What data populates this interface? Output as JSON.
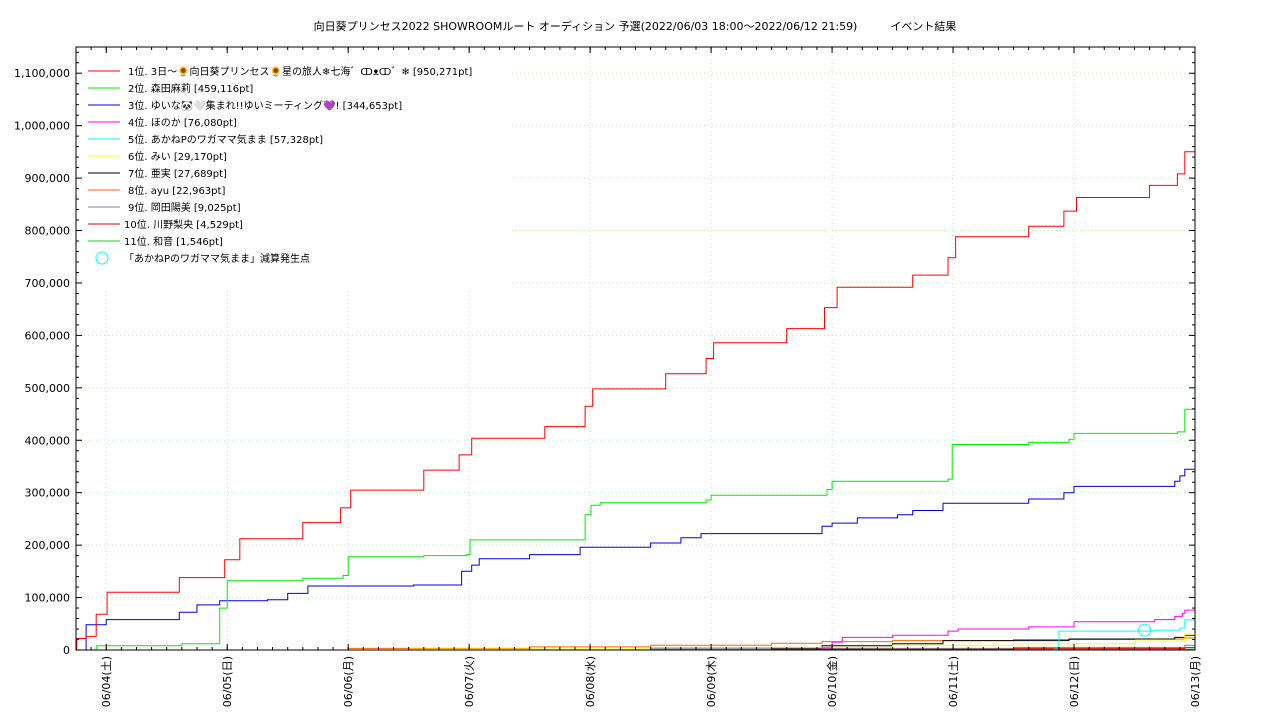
{
  "chart_data": {
    "type": "line",
    "title": "向日葵プリンセス2022 SHOWROOMルート オーディション 予選(2022/06/03 18:00～2022/06/12 21:59)　　　イベント結果",
    "xlabel": "",
    "ylabel": "",
    "ylim": [
      0,
      1150000
    ],
    "xlim": [
      "2022-06-03 18:00",
      "2022-06-13 00:00"
    ],
    "y_ticks": [
      0,
      100000,
      200000,
      300000,
      400000,
      500000,
      600000,
      700000,
      800000,
      900000,
      1000000,
      1100000
    ],
    "y_tick_labels": [
      "0",
      "100,000",
      "200,000",
      "300,000",
      "400,000",
      "500,000",
      "600,000",
      "700,000",
      "800,000",
      "900,000",
      "1,000,000",
      "1,100,000"
    ],
    "x_ticks": [
      "2022-06-04",
      "2022-06-05",
      "2022-06-06",
      "2022-06-07",
      "2022-06-08",
      "2022-06-09",
      "2022-06-10",
      "2022-06-11",
      "2022-06-12",
      "2022-06-13"
    ],
    "x_tick_labels": [
      "06/04(土)",
      "06/05(日)",
      "06/06(月)",
      "06/07(火)",
      "06/08(水)",
      "06/09(木)",
      "06/10(金)",
      "06/11(土)",
      "06/12(日)",
      "06/13(月)"
    ],
    "grid": true,
    "legend_position": "top-left",
    "series": [
      {
        "name": "1位. 3日〜🌻向日葵プリンセス🌻星の旅人❄七海゛ↀᴥↀ゛❄ [950,271pt]",
        "color": "#ff0000",
        "points": [
          [
            "2022-06-03 18:00",
            0
          ],
          [
            "2022-06-03 18:10",
            22000
          ],
          [
            "2022-06-03 20:00",
            26000
          ],
          [
            "2022-06-03 22:00",
            68000
          ],
          [
            "2022-06-04 00:10",
            110000
          ],
          [
            "2022-06-04 14:30",
            138000
          ],
          [
            "2022-06-04 23:30",
            172000
          ],
          [
            "2022-06-05 02:30",
            212000
          ],
          [
            "2022-06-05 15:00",
            243000
          ],
          [
            "2022-06-05 22:30",
            271000
          ],
          [
            "2022-06-06 00:30",
            305000
          ],
          [
            "2022-06-06 15:00",
            343000
          ],
          [
            "2022-06-06 22:00",
            372000
          ],
          [
            "2022-06-07 00:30",
            404000
          ],
          [
            "2022-06-07 15:00",
            426000
          ],
          [
            "2022-06-07 23:00",
            465000
          ],
          [
            "2022-06-08 00:30",
            498000
          ],
          [
            "2022-06-08 15:00",
            527000
          ],
          [
            "2022-06-08 23:00",
            556000
          ],
          [
            "2022-06-09 00:30",
            586000
          ],
          [
            "2022-06-09 15:00",
            613000
          ],
          [
            "2022-06-09 22:30",
            653000
          ],
          [
            "2022-06-10 01:00",
            692000
          ],
          [
            "2022-06-10 16:00",
            715000
          ],
          [
            "2022-06-10 23:00",
            748000
          ],
          [
            "2022-06-11 00:30",
            788000
          ],
          [
            "2022-06-11 15:00",
            808000
          ],
          [
            "2022-06-11 22:00",
            837000
          ],
          [
            "2022-06-12 00:30",
            863000
          ],
          [
            "2022-06-12 15:00",
            886000
          ],
          [
            "2022-06-12 20:30",
            908000
          ],
          [
            "2022-06-12 21:59",
            950271
          ],
          [
            "2022-06-13 00:00",
            950271
          ]
        ]
      },
      {
        "name": "2位. 森田麻莉 [459,116pt]",
        "color": "#00ee00",
        "points": [
          [
            "2022-06-03 18:00",
            0
          ],
          [
            "2022-06-03 22:00",
            8000
          ],
          [
            "2022-06-04 15:00",
            12000
          ],
          [
            "2022-06-04 22:30",
            80000
          ],
          [
            "2022-06-05 00:00",
            132000
          ],
          [
            "2022-06-05 15:00",
            137000
          ],
          [
            "2022-06-05 23:00",
            142000
          ],
          [
            "2022-06-06 00:00",
            178000
          ],
          [
            "2022-06-06 15:00",
            180000
          ],
          [
            "2022-06-06 23:30",
            182000
          ],
          [
            "2022-06-07 00:10",
            210000
          ],
          [
            "2022-06-07 23:00",
            258000
          ],
          [
            "2022-06-08 00:10",
            276000
          ],
          [
            "2022-06-08 02:00",
            281000
          ],
          [
            "2022-06-08 23:00",
            286000
          ],
          [
            "2022-06-09 00:00",
            295000
          ],
          [
            "2022-06-09 23:00",
            306000
          ],
          [
            "2022-06-10 00:00",
            322000
          ],
          [
            "2022-06-10 23:00",
            326000
          ],
          [
            "2022-06-10 23:50",
            392000
          ],
          [
            "2022-06-11 15:00",
            396000
          ],
          [
            "2022-06-11 23:00",
            402000
          ],
          [
            "2022-06-12 00:00",
            413000
          ],
          [
            "2022-06-12 20:30",
            416000
          ],
          [
            "2022-06-12 21:59",
            459116
          ],
          [
            "2022-06-13 00:00",
            459116
          ]
        ]
      },
      {
        "name": "3位. ゆいな🐼🤍集まれ!!ゆいミーティング💜! [344,653pt]",
        "color": "#0000dd",
        "points": [
          [
            "2022-06-03 18:00",
            0
          ],
          [
            "2022-06-03 20:00",
            48000
          ],
          [
            "2022-06-04 00:00",
            58000
          ],
          [
            "2022-06-04 14:30",
            72000
          ],
          [
            "2022-06-04 18:00",
            86000
          ],
          [
            "2022-06-04 22:30",
            94000
          ],
          [
            "2022-06-05 08:00",
            96000
          ],
          [
            "2022-06-05 12:00",
            108000
          ],
          [
            "2022-06-05 16:00",
            122000
          ],
          [
            "2022-06-06 13:00",
            124000
          ],
          [
            "2022-06-06 22:30",
            150000
          ],
          [
            "2022-06-07 00:30",
            162000
          ],
          [
            "2022-06-07 02:00",
            174000
          ],
          [
            "2022-06-07 12:00",
            182000
          ],
          [
            "2022-06-07 22:00",
            196000
          ],
          [
            "2022-06-08 12:00",
            204000
          ],
          [
            "2022-06-08 18:00",
            214000
          ],
          [
            "2022-06-08 22:00",
            222000
          ],
          [
            "2022-06-09 22:00",
            236000
          ],
          [
            "2022-06-10 00:00",
            242000
          ],
          [
            "2022-06-10 05:00",
            252000
          ],
          [
            "2022-06-10 13:00",
            258000
          ],
          [
            "2022-06-10 16:00",
            266000
          ],
          [
            "2022-06-10 22:00",
            280000
          ],
          [
            "2022-06-11 15:00",
            288000
          ],
          [
            "2022-06-11 22:00",
            300000
          ],
          [
            "2022-06-12 00:00",
            312000
          ],
          [
            "2022-06-12 20:00",
            322000
          ],
          [
            "2022-06-12 21:00",
            332000
          ],
          [
            "2022-06-12 21:59",
            344653
          ],
          [
            "2022-06-13 00:00",
            344653
          ]
        ]
      },
      {
        "name": "4位. ほのか [76,080pt]",
        "color": "#ff00ff",
        "points": [
          [
            "2022-06-03 18:00",
            0
          ],
          [
            "2022-06-09 22:00",
            4000
          ],
          [
            "2022-06-10 00:00",
            15000
          ],
          [
            "2022-06-10 02:00",
            24000
          ],
          [
            "2022-06-10 12:00",
            28000
          ],
          [
            "2022-06-10 23:00",
            36000
          ],
          [
            "2022-06-11 01:00",
            40000
          ],
          [
            "2022-06-11 15:00",
            44000
          ],
          [
            "2022-06-12 00:00",
            54000
          ],
          [
            "2022-06-12 16:00",
            58000
          ],
          [
            "2022-06-12 20:00",
            64000
          ],
          [
            "2022-06-12 21:30",
            70000
          ],
          [
            "2022-06-12 21:59",
            76080
          ],
          [
            "2022-06-13 00:00",
            76080
          ]
        ]
      },
      {
        "name": "5位. あかねPのワガママ気まま [57,328pt]",
        "color": "#00ffff",
        "points": [
          [
            "2022-06-03 18:00",
            0
          ],
          [
            "2022-06-11 20:00",
            2000
          ],
          [
            "2022-06-11 21:00",
            36000
          ],
          [
            "2022-06-12 16:00",
            38000
          ],
          [
            "2022-06-12 21:00",
            42000
          ],
          [
            "2022-06-12 21:59",
            57328
          ],
          [
            "2022-06-13 00:00",
            57328
          ]
        ]
      },
      {
        "name": "6位. みい [29,170pt]",
        "color": "#ffff00",
        "points": [
          [
            "2022-06-03 18:00",
            0
          ],
          [
            "2022-06-06 12:00",
            2000
          ],
          [
            "2022-06-08 12:00",
            5000
          ],
          [
            "2022-06-10 12:00",
            9000
          ],
          [
            "2022-06-11 12:00",
            12000
          ],
          [
            "2022-06-12 12:00",
            17000
          ],
          [
            "2022-06-12 21:59",
            29170
          ],
          [
            "2022-06-13 00:00",
            29170
          ]
        ]
      },
      {
        "name": "7位. 亜実 [27,689pt]",
        "color": "#000000",
        "points": [
          [
            "2022-06-03 18:00",
            0
          ],
          [
            "2022-06-06 12:00",
            2000
          ],
          [
            "2022-06-08 12:00",
            4000
          ],
          [
            "2022-06-09 22:00",
            8000
          ],
          [
            "2022-06-10 12:00",
            12000
          ],
          [
            "2022-06-10 22:00",
            18000
          ],
          [
            "2022-06-11 23:00",
            21000
          ],
          [
            "2022-06-12 20:00",
            24000
          ],
          [
            "2022-06-12 21:59",
            27689
          ],
          [
            "2022-06-13 00:00",
            27689
          ]
        ]
      },
      {
        "name": "8位. ayu [22,963pt]",
        "color": "#ff6600",
        "points": [
          [
            "2022-06-03 18:00",
            0
          ],
          [
            "2022-06-06 00:00",
            3000
          ],
          [
            "2022-06-07 12:00",
            6000
          ],
          [
            "2022-06-08 12:00",
            9000
          ],
          [
            "2022-06-09 12:00",
            13000
          ],
          [
            "2022-06-09 22:00",
            16000
          ],
          [
            "2022-06-10 12:00",
            18000
          ],
          [
            "2022-06-11 12:00",
            20000
          ],
          [
            "2022-06-12 12:00",
            21000
          ],
          [
            "2022-06-12 21:59",
            22963
          ],
          [
            "2022-06-13 00:00",
            22963
          ]
        ]
      },
      {
        "name": "9位. 岡田陽美 [9,025pt]",
        "color": "#808080",
        "points": [
          [
            "2022-06-03 18:00",
            0
          ],
          [
            "2022-06-06 12:00",
            1000
          ],
          [
            "2022-06-09 12:00",
            3000
          ],
          [
            "2022-06-11 12:00",
            5000
          ],
          [
            "2022-06-12 21:59",
            9025
          ],
          [
            "2022-06-13 00:00",
            9025
          ]
        ]
      },
      {
        "name": "10位. 川野梨央 [4,529pt]",
        "color": "#dd0000",
        "points": [
          [
            "2022-06-03 18:00",
            0
          ],
          [
            "2022-06-06 12:00",
            800
          ],
          [
            "2022-06-09 12:00",
            2000
          ],
          [
            "2022-06-11 12:00",
            3000
          ],
          [
            "2022-06-12 21:59",
            4529
          ],
          [
            "2022-06-13 00:00",
            4529
          ]
        ]
      },
      {
        "name": "11位. 和音 [1,546pt]",
        "color": "#22cc22",
        "points": [
          [
            "2022-06-03 18:00",
            0
          ],
          [
            "2022-06-07 12:00",
            500
          ],
          [
            "2022-06-10 12:00",
            1000
          ],
          [
            "2022-06-12 21:59",
            1546
          ],
          [
            "2022-06-13 00:00",
            1546
          ]
        ]
      }
    ],
    "annotations": [
      {
        "label": "「あかねPのワガママ気まま」減算発生点",
        "marker": "circle",
        "color": "#00ffff",
        "x": "2022-06-12 14:00",
        "y": 38000
      }
    ]
  }
}
